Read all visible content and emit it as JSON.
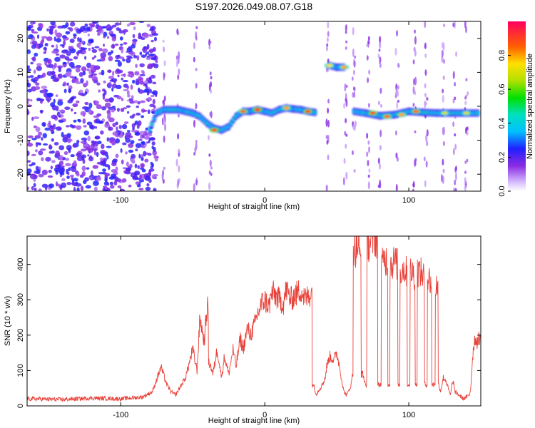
{
  "title": "S197.2026.049.08.07.G18",
  "chart_data": [
    {
      "type": "heatmap",
      "name": "spectrogram",
      "xlabel": "Height of straight line (km)",
      "ylabel": "Frequency (Hz)",
      "xlim": [
        -165,
        150
      ],
      "ylim": [
        -25,
        25
      ],
      "xticks": [
        -100,
        0,
        100
      ],
      "yticks": [
        -20,
        -10,
        0,
        10,
        20
      ],
      "colorbar": {
        "label": "Normalized spectral amplitude",
        "range": [
          0,
          1
        ],
        "ticks": [
          0.0,
          0.2,
          0.4,
          0.6,
          0.8
        ]
      },
      "ridge": {
        "x": [
          -80,
          -75,
          -70,
          -60,
          -50,
          -45,
          -40,
          -35,
          -30,
          -25,
          -20,
          -15,
          -10,
          -5,
          0,
          5,
          10,
          15,
          20,
          25,
          30,
          35,
          38,
          45,
          50,
          55,
          58,
          62,
          70,
          80,
          90,
          100,
          110,
          120,
          130,
          140,
          148
        ],
        "y": [
          -7,
          -2,
          -1,
          -1,
          -2,
          -3,
          -5,
          -6.5,
          -7,
          -6,
          -3,
          -1.5,
          -1.5,
          -1,
          -1.5,
          -2,
          -1,
          -0.5,
          -0.8,
          -1,
          -1.5,
          -1.8,
          null,
          12,
          11.5,
          11.5,
          null,
          -1.5,
          -2,
          -2.8,
          -2.5,
          -1.5,
          -1.8,
          -2,
          -2,
          -2,
          -2
        ]
      },
      "peaks": {
        "x": [
          -35,
          -15,
          -5,
          15,
          30,
          45,
          55,
          75,
          85,
          95,
          105,
          125,
          140
        ],
        "y": [
          -7,
          -1.5,
          -1,
          -0.5,
          -1.5,
          12,
          11.5,
          -2,
          -3,
          -2.5,
          -1.5,
          -2,
          -2
        ],
        "amplitude": [
          0.9,
          0.85,
          0.95,
          0.8,
          0.9,
          0.75,
          0.8,
          0.9,
          0.85,
          0.8,
          0.85,
          0.7,
          0.7
        ]
      }
    },
    {
      "type": "line",
      "name": "snr",
      "xlabel": "Height of straight line (km)",
      "ylabel": "SNR (10 * v/v)",
      "xlim": [
        -165,
        150
      ],
      "ylim": [
        0,
        480
      ],
      "xticks": [
        -100,
        0,
        100
      ],
      "yticks": [
        0,
        100,
        200,
        300,
        400
      ],
      "color": "#e8423a",
      "series": [
        {
          "name": "SNR",
          "x": [
            -165,
            -140,
            -120,
            -100,
            -85,
            -78,
            -72,
            -68,
            -65,
            -62,
            -55,
            -50,
            -47,
            -45,
            -42,
            -40,
            -38,
            -36,
            -33,
            -30,
            -28,
            -25,
            -22,
            -20,
            -17,
            -15,
            -12,
            -10,
            -7,
            -5,
            -2,
            0,
            3,
            5,
            8,
            10,
            13,
            15,
            18,
            20,
            23,
            25,
            28,
            30,
            32,
            34,
            35,
            36,
            40,
            42,
            43,
            45,
            48,
            50,
            52,
            54,
            55,
            57,
            60,
            61,
            62,
            63,
            65,
            66,
            68,
            70,
            72,
            75,
            76,
            77,
            80,
            82,
            83,
            85,
            86,
            88,
            90,
            92,
            93,
            95,
            96,
            98,
            100,
            102,
            104,
            105,
            107,
            110,
            112,
            114,
            115,
            117,
            120,
            121,
            122,
            124,
            126,
            128,
            129,
            130,
            131,
            132,
            135,
            138,
            140,
            142,
            143,
            144,
            145,
            146,
            148,
            150
          ],
          "y": [
            20,
            18,
            22,
            20,
            25,
            40,
            110,
            60,
            40,
            30,
            80,
            160,
            100,
            250,
            180,
            280,
            120,
            90,
            160,
            80,
            140,
            90,
            160,
            110,
            190,
            160,
            220,
            200,
            230,
            260,
            290,
            300,
            280,
            320,
            310,
            300,
            290,
            330,
            300,
            310,
            320,
            330,
            300,
            310,
            320,
            60,
            40,
            35,
            60,
            80,
            110,
            140,
            130,
            150,
            110,
            60,
            40,
            30,
            60,
            90,
            450,
            440,
            460,
            420,
            90,
            60,
            460,
            470,
            480,
            470,
            60,
            400,
            420,
            410,
            60,
            400,
            410,
            400,
            60,
            380,
            390,
            380,
            60,
            380,
            370,
            60,
            380,
            370,
            60,
            360,
            350,
            60,
            340,
            60,
            40,
            80,
            70,
            40,
            30,
            60,
            70,
            40,
            30,
            20,
            25,
            30,
            50,
            120,
            170,
            190,
            180,
            200
          ]
        }
      ]
    }
  ]
}
